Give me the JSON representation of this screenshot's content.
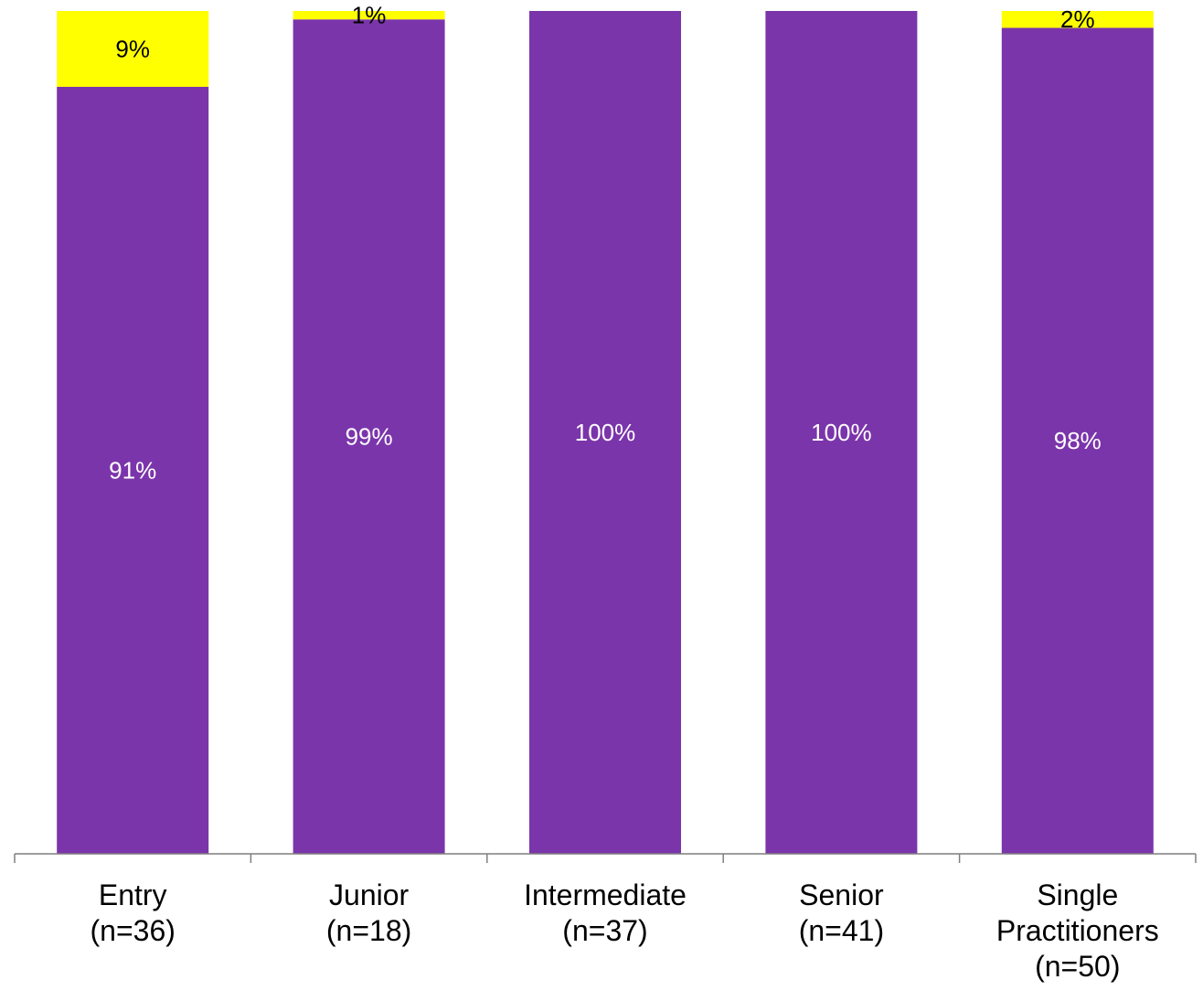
{
  "chart_data": {
    "type": "bar",
    "stacked": true,
    "percent": true,
    "categories": [
      [
        "Entry",
        "(n=36)"
      ],
      [
        "Junior",
        "(n=18)"
      ],
      [
        "Intermediate",
        "(n=37)"
      ],
      [
        "Senior",
        "(n=41)"
      ],
      [
        "Single",
        "Practitioners",
        "(n=50)"
      ]
    ],
    "series": [
      {
        "color": "#7b35ab",
        "values": [
          91,
          99,
          100,
          100,
          98
        ],
        "labels": [
          "91%",
          "99%",
          "100%",
          "100%",
          "98%"
        ],
        "label_color": "#ffffff"
      },
      {
        "color": "#ffff00",
        "values": [
          9,
          1,
          0,
          0,
          2
        ],
        "labels": [
          "9%",
          "1%",
          "",
          "",
          "2%"
        ],
        "label_color": "#000000"
      }
    ],
    "ylim": [
      0,
      100
    ],
    "title": "",
    "xlabel": "",
    "ylabel": "",
    "grid": false,
    "legend": "none"
  }
}
